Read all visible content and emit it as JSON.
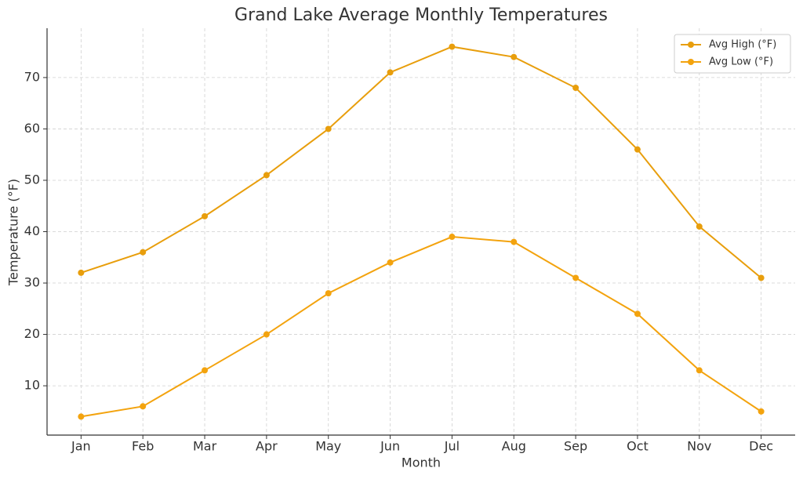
{
  "chart_data": {
    "type": "line",
    "title": "Grand Lake Average Monthly Temperatures",
    "x_label": "Month",
    "y_label": "Temperature (°F)",
    "categories": [
      "Jan",
      "Feb",
      "Mar",
      "Apr",
      "May",
      "Jun",
      "Jul",
      "Aug",
      "Sep",
      "Oct",
      "Nov",
      "Dec"
    ],
    "series": [
      {
        "name": "Avg High (°F)",
        "color": "#e89e0c",
        "values": [
          32,
          36,
          43,
          51,
          60,
          71,
          76,
          74,
          68,
          56,
          41,
          31
        ]
      },
      {
        "name": "Avg Low (°F)",
        "color": "#f3a30e",
        "values": [
          4,
          6,
          13,
          20,
          28,
          34,
          39,
          38,
          31,
          24,
          13,
          5
        ]
      }
    ],
    "ylim": [
      0.4,
      79.6
    ],
    "yticks": [
      10,
      20,
      30,
      40,
      50,
      60,
      70
    ],
    "grid": true,
    "legend": "upper right"
  }
}
